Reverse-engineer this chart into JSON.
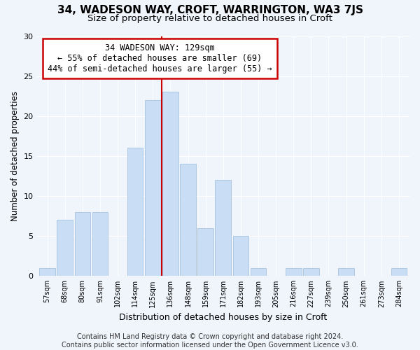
{
  "title": "34, WADESON WAY, CROFT, WARRINGTON, WA3 7JS",
  "subtitle": "Size of property relative to detached houses in Croft",
  "xlabel": "Distribution of detached houses by size in Croft",
  "ylabel": "Number of detached properties",
  "bar_labels": [
    "57sqm",
    "68sqm",
    "80sqm",
    "91sqm",
    "102sqm",
    "114sqm",
    "125sqm",
    "136sqm",
    "148sqm",
    "159sqm",
    "171sqm",
    "182sqm",
    "193sqm",
    "205sqm",
    "216sqm",
    "227sqm",
    "239sqm",
    "250sqm",
    "261sqm",
    "273sqm",
    "284sqm"
  ],
  "bar_values": [
    1,
    7,
    8,
    8,
    0,
    16,
    22,
    23,
    14,
    6,
    12,
    5,
    1,
    0,
    1,
    1,
    0,
    1,
    0,
    0,
    1
  ],
  "bar_color": "#c9ddf5",
  "bar_edge_color": "#a8c4e0",
  "vline_x_index": 6.5,
  "vline_color": "#cc0000",
  "annotation_text": "34 WADESON WAY: 129sqm\n← 55% of detached houses are smaller (69)\n44% of semi-detached houses are larger (55) →",
  "annotation_box_color": "#ffffff",
  "annotation_box_edge": "#cc0000",
  "ylim": [
    0,
    30
  ],
  "yticks": [
    0,
    5,
    10,
    15,
    20,
    25,
    30
  ],
  "footer": "Contains HM Land Registry data © Crown copyright and database right 2024.\nContains public sector information licensed under the Open Government Licence v3.0.",
  "bg_color": "#f0f4fb",
  "plot_bg_color": "#f0f4fb",
  "title_fontsize": 11,
  "subtitle_fontsize": 9.5,
  "xlabel_fontsize": 9,
  "ylabel_fontsize": 8.5,
  "footer_fontsize": 7,
  "grid_color": "#ffffff",
  "annotation_fontsize": 8.5
}
